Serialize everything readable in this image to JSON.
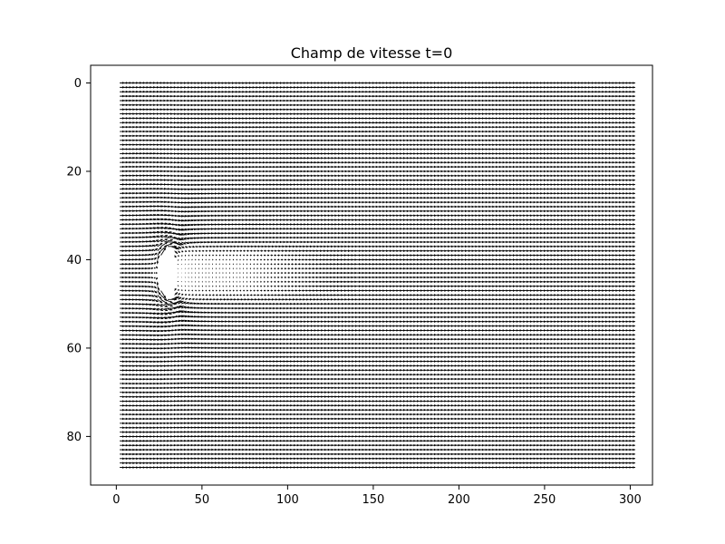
{
  "chart_data": {
    "type": "quiver",
    "title": "Champ de vitesse t=0",
    "xlabel": "",
    "ylabel": "",
    "xlim": [
      -15,
      313
    ],
    "ylim": [
      91,
      -4
    ],
    "y_inverted": true,
    "grid": false,
    "x_ticks": [
      0,
      50,
      100,
      150,
      200,
      250,
      300
    ],
    "y_ticks": [
      0,
      20,
      40,
      60,
      80
    ],
    "grid_points": {
      "x_start": 2,
      "x_end": 300,
      "x_step": 2,
      "y_start": 0,
      "y_end": 87,
      "y_step": 1
    },
    "base_flow": {
      "direction": "+x",
      "u": 1.0,
      "v": 0.0
    },
    "obstacle": {
      "center_x": 30,
      "center_y": 43,
      "radius": 7
    },
    "wake": {
      "x_start": 37,
      "x_end": 140,
      "y_min": 38,
      "y_max": 48
    },
    "arrow_color": "#000000",
    "background_color": "#ffffff"
  }
}
